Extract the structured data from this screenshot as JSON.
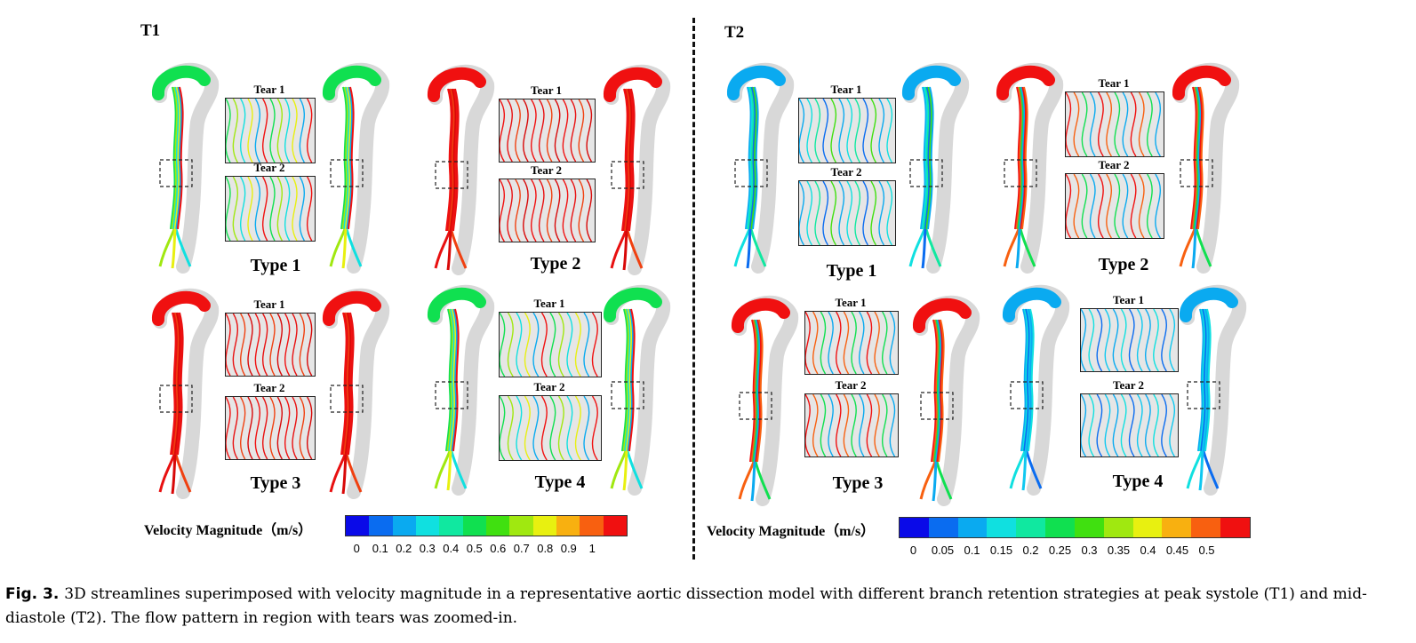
{
  "panels": {
    "t1": {
      "label": "T1"
    },
    "t2": {
      "label": "T2"
    }
  },
  "tear_labels": {
    "tear1": "Tear 1",
    "tear2": "Tear 2"
  },
  "types": {
    "type1": "Type 1",
    "type2": "Type 2",
    "type3": "Type 3",
    "type4": "Type 4"
  },
  "legend": {
    "title": "Velocity Magnitude（m/s）",
    "t1_ticks": [
      "0",
      "0.1",
      "0.2",
      "0.3",
      "0.4",
      "0.5",
      "0.6",
      "0.7",
      "0.8",
      "0.9",
      "1"
    ],
    "t2_ticks": [
      "0",
      "0.05",
      "0.1",
      "0.15",
      "0.2",
      "0.25",
      "0.3",
      "0.35",
      "0.4",
      "0.45",
      "0.5"
    ],
    "colors": [
      "#0a0ae8",
      "#0a6cf0",
      "#0aaaf0",
      "#10e0e0",
      "#10e8a0",
      "#10e050",
      "#40e010",
      "#a0e810",
      "#e8f010",
      "#f8b010",
      "#f86010",
      "#f01010"
    ]
  },
  "caption": {
    "fig": "Fig. 3.",
    "text": "3D streamlines superimposed with velocity magnitude in a representative aortic dissection model with different branch retention strategies at peak systole (T1) and mid-diastole (T2). The flow pattern in region with tears was zoomed-in."
  }
}
